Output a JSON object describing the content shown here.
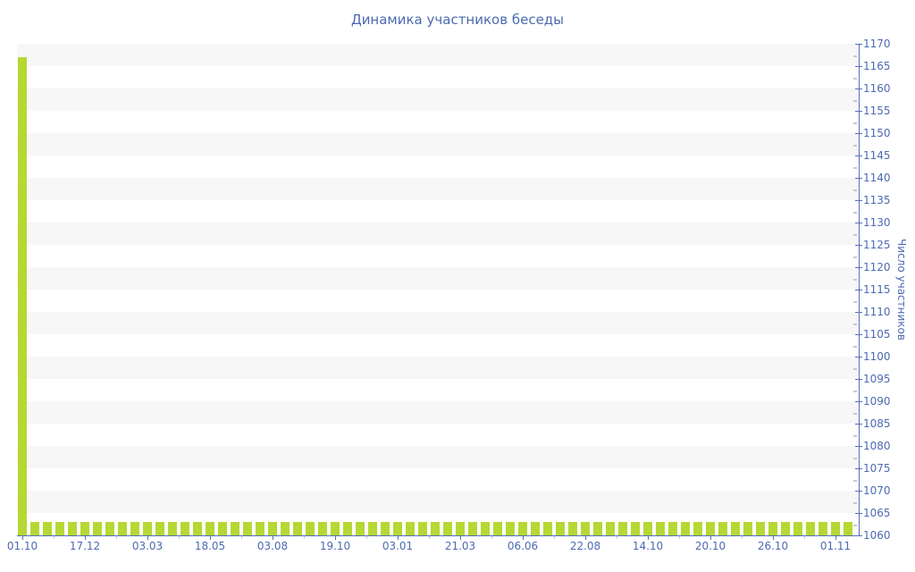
{
  "page": {
    "background_color": "#ffffff"
  },
  "chart_data": {
    "type": "bar",
    "title": "Динамика участников беседы",
    "xlabel": "",
    "ylabel": "Число участников",
    "ylim": [
      1060,
      1170
    ],
    "y_tick_step": 5,
    "y_ticks": [
      1060,
      1065,
      1070,
      1075,
      1080,
      1085,
      1090,
      1095,
      1100,
      1105,
      1110,
      1115,
      1120,
      1125,
      1130,
      1135,
      1140,
      1145,
      1150,
      1155,
      1160,
      1165,
      1170
    ],
    "y_axis_position": "right",
    "x_ticks": [
      "01.10",
      "17.12",
      "03.03",
      "18.05",
      "03.08",
      "19.10",
      "03.01",
      "21.03",
      "06.06",
      "22.08",
      "14.10",
      "20.10",
      "26.10",
      "01.11"
    ],
    "x_tick_every_n_bars": 5,
    "x_tick_start_bar_index": 0,
    "bar_count": 67,
    "values": [
      1167,
      1063,
      1063,
      1063,
      1063,
      1063,
      1063,
      1063,
      1063,
      1063,
      1063,
      1063,
      1063,
      1063,
      1063,
      1063,
      1063,
      1063,
      1063,
      1063,
      1063,
      1063,
      1063,
      1063,
      1063,
      1063,
      1063,
      1063,
      1063,
      1063,
      1063,
      1063,
      1063,
      1063,
      1063,
      1063,
      1063,
      1063,
      1063,
      1063,
      1063,
      1063,
      1063,
      1063,
      1063,
      1063,
      1063,
      1063,
      1063,
      1063,
      1063,
      1063,
      1063,
      1063,
      1063,
      1063,
      1063,
      1063,
      1063,
      1063,
      1063,
      1063,
      1063,
      1063,
      1063,
      1063,
      1063
    ],
    "legend_position": "none",
    "grid": "alternating-horizontal-bands",
    "colors": {
      "bar": "#b5d834",
      "axis_line": "#5571b8",
      "axis_text": "#4d6ab0",
      "band": "#f7f7f7",
      "minor_tick": "#c9c9c9"
    }
  }
}
